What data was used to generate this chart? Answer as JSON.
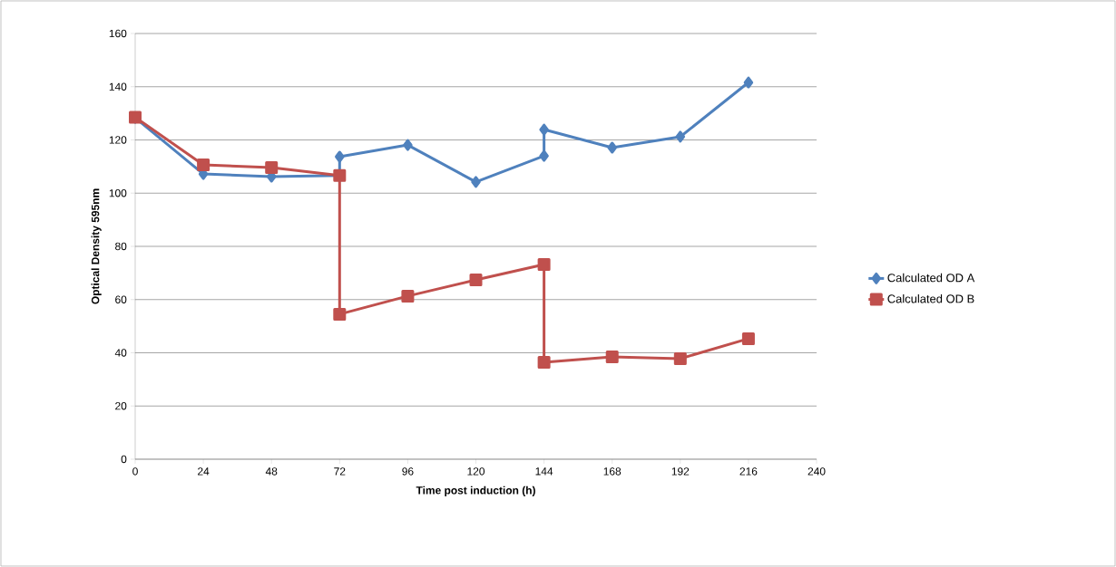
{
  "chart_data": {
    "type": "line",
    "xlabel": "Time  post induction (h)",
    "ylabel": "Optical Density 595nm",
    "xlim": [
      0,
      240
    ],
    "xticks": [
      0,
      24,
      48,
      72,
      96,
      120,
      144,
      168,
      192,
      216,
      240
    ],
    "ylim": [
      0,
      160
    ],
    "yticks": [
      0,
      20,
      40,
      60,
      80,
      100,
      120,
      140,
      160
    ],
    "grid": "y",
    "legend": "right",
    "line_style": "solid",
    "series": [
      {
        "name": "Calculated OD A",
        "color": "#4f81bd",
        "marker": "diamond",
        "x": [
          0,
          24,
          48,
          72,
          72,
          96,
          120,
          144,
          144,
          168,
          192,
          216
        ],
        "values": [
          128.3,
          107.2,
          106.2,
          106.6,
          113.7,
          118.1,
          104.2,
          114.0,
          123.9,
          117.1,
          121.2,
          141.6
        ]
      },
      {
        "name": "Calculated OD B",
        "color": "#c0504d",
        "marker": "square",
        "x": [
          0,
          24,
          48,
          72,
          72,
          96,
          120,
          144,
          144,
          168,
          192,
          216
        ],
        "values": [
          128.5,
          110.6,
          109.6,
          106.6,
          54.5,
          61.3,
          67.4,
          73.2,
          36.4,
          38.5,
          37.8,
          45.3
        ]
      }
    ]
  }
}
